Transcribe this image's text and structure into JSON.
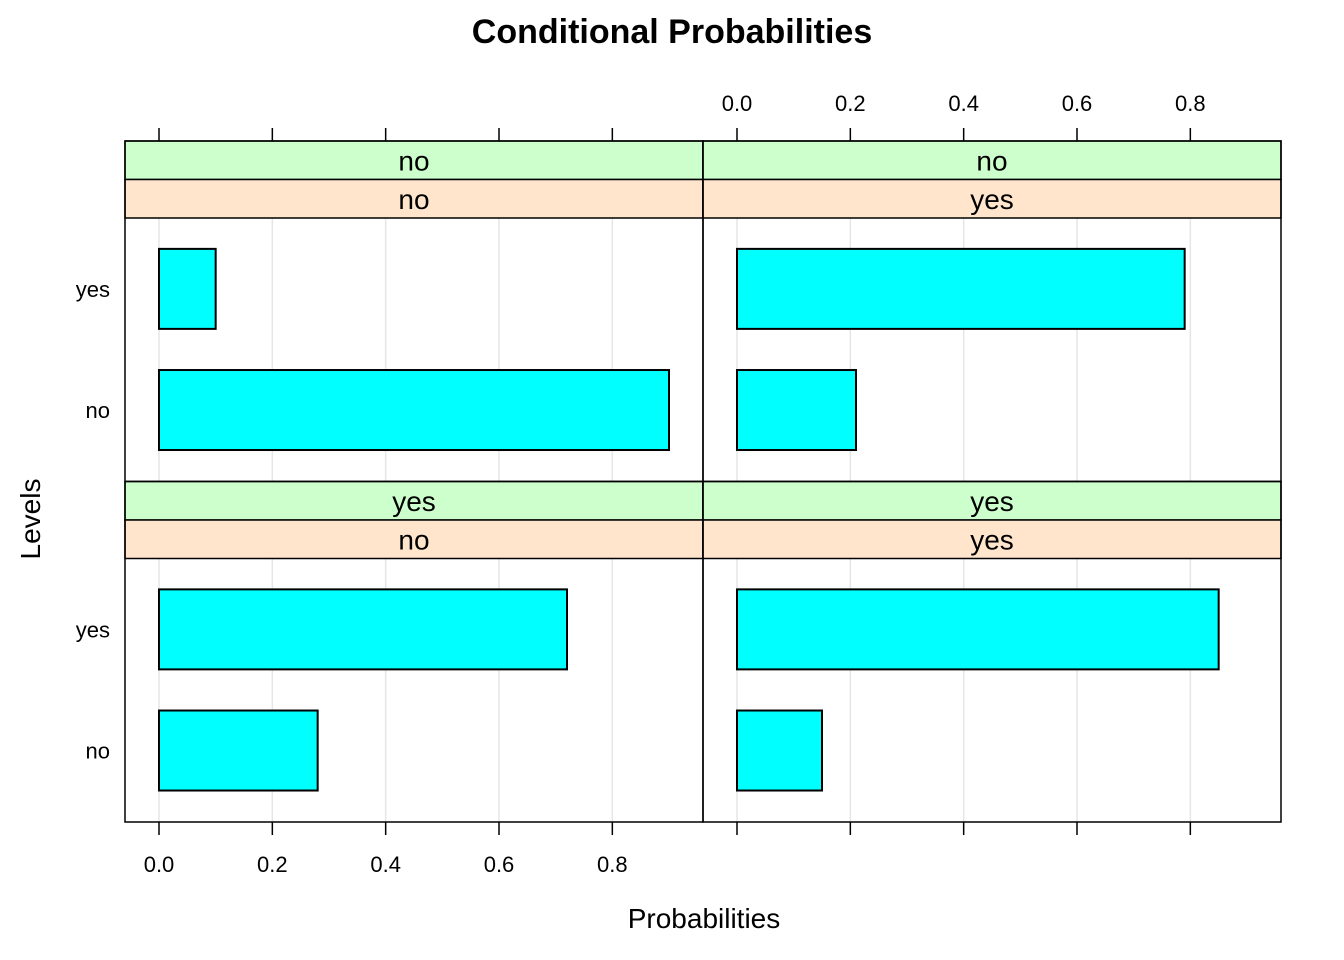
{
  "chart_data": {
    "type": "bar",
    "orientation": "horizontal",
    "title": "Conditional Probabilities",
    "xlabel": "Probabilities",
    "ylabel": "Levels",
    "xlim": [
      -0.06,
      0.96
    ],
    "x_ticks": [
      0.0,
      0.2,
      0.4,
      0.6,
      0.8
    ],
    "x_tick_labels": [
      "0.0",
      "0.2",
      "0.4",
      "0.6",
      "0.8"
    ],
    "categories": [
      "no",
      "yes"
    ],
    "grid": true,
    "colors": {
      "bar": "#00ffff",
      "strip_top": "#ccffcc",
      "strip_bottom": "#ffe5cc",
      "grid": "#e6e6e6"
    },
    "panels": [
      {
        "strips": [
          "no",
          "no"
        ],
        "values": {
          "no": 0.9,
          "yes": 0.1
        }
      },
      {
        "strips": [
          "no",
          "yes"
        ],
        "values": {
          "no": 0.21,
          "yes": 0.79
        }
      },
      {
        "strips": [
          "yes",
          "no"
        ],
        "values": {
          "no": 0.28,
          "yes": 0.72
        }
      },
      {
        "strips": [
          "yes",
          "yes"
        ],
        "values": {
          "no": 0.15,
          "yes": 0.85
        }
      }
    ]
  }
}
